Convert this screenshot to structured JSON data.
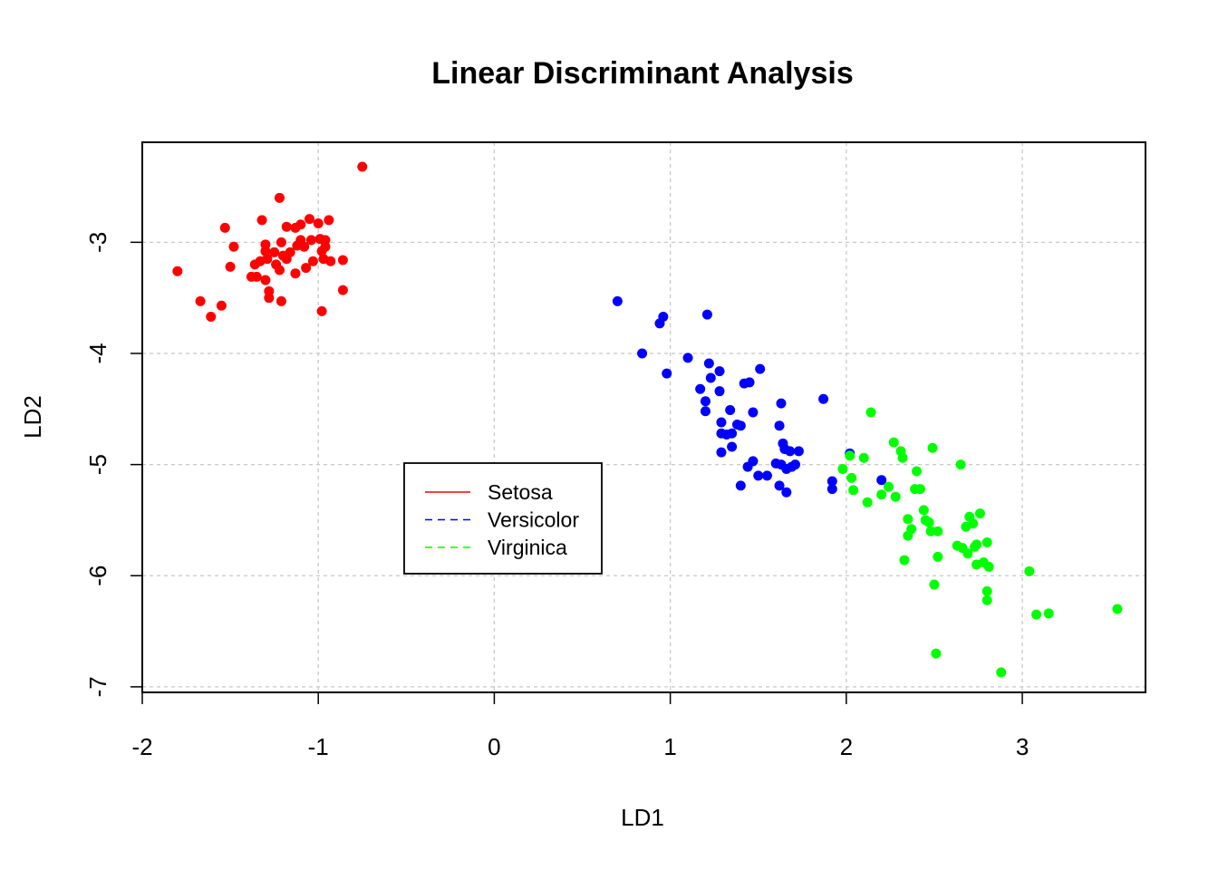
{
  "chart_data": {
    "type": "scatter",
    "title": "Linear Discriminant Analysis",
    "xlabel": "LD1",
    "ylabel": "LD2",
    "xlim": [
      -2.0,
      3.7
    ],
    "ylim": [
      -7.05,
      -2.1
    ],
    "xticks": [
      -2,
      -1,
      0,
      1,
      2,
      3
    ],
    "yticks": [
      -3,
      -4,
      -5,
      -6,
      -7
    ],
    "grid": true,
    "legend": {
      "placement": "center",
      "entries": [
        {
          "name": "Setosa",
          "color": "#ff0000",
          "dash": "solid"
        },
        {
          "name": "Versicolor",
          "color": "#0000ff",
          "dash": "dashed"
        },
        {
          "name": "Virginica",
          "color": "#00ff00",
          "dash": "dashed"
        }
      ]
    },
    "series": [
      {
        "name": "Setosa",
        "color": "#ff0000",
        "points": [
          [
            -0.75,
            -2.32
          ],
          [
            -1.8,
            -3.26
          ],
          [
            -1.67,
            -3.53
          ],
          [
            -1.61,
            -3.67
          ],
          [
            -1.55,
            -3.57
          ],
          [
            -1.53,
            -2.87
          ],
          [
            -1.48,
            -3.04
          ],
          [
            -1.5,
            -3.22
          ],
          [
            -1.38,
            -3.31
          ],
          [
            -1.35,
            -3.31
          ],
          [
            -1.36,
            -3.2
          ],
          [
            -1.33,
            -3.17
          ],
          [
            -1.32,
            -2.8
          ],
          [
            -1.3,
            -3.02
          ],
          [
            -1.3,
            -3.08
          ],
          [
            -1.29,
            -3.15
          ],
          [
            -1.3,
            -3.34
          ],
          [
            -1.28,
            -3.44
          ],
          [
            -1.28,
            -3.5
          ],
          [
            -1.25,
            -3.09
          ],
          [
            -1.24,
            -3.2
          ],
          [
            -1.22,
            -2.6
          ],
          [
            -1.21,
            -3.0
          ],
          [
            -1.2,
            -3.12
          ],
          [
            -1.22,
            -3.25
          ],
          [
            -1.21,
            -3.53
          ],
          [
            -1.18,
            -2.86
          ],
          [
            -1.18,
            -3.15
          ],
          [
            -1.16,
            -3.09
          ],
          [
            -1.13,
            -2.87
          ],
          [
            -1.12,
            -3.03
          ],
          [
            -1.13,
            -3.28
          ],
          [
            -1.1,
            -2.84
          ],
          [
            -1.1,
            -2.98
          ],
          [
            -1.08,
            -3.04
          ],
          [
            -1.07,
            -3.23
          ],
          [
            -1.05,
            -2.79
          ],
          [
            -1.04,
            -2.98
          ],
          [
            -1.03,
            -3.17
          ],
          [
            -1.0,
            -2.83
          ],
          [
            -0.99,
            -2.97
          ],
          [
            -0.98,
            -3.08
          ],
          [
            -0.97,
            -3.15
          ],
          [
            -0.96,
            -3.04
          ],
          [
            -0.96,
            -2.98
          ],
          [
            -0.98,
            -3.62
          ],
          [
            -0.94,
            -2.8
          ],
          [
            -0.93,
            -3.17
          ],
          [
            -0.86,
            -3.16
          ],
          [
            -0.86,
            -3.43
          ]
        ]
      },
      {
        "name": "Versicolor",
        "color": "#0000ff",
        "points": [
          [
            0.7,
            -3.53
          ],
          [
            0.84,
            -4.0
          ],
          [
            0.94,
            -3.73
          ],
          [
            0.96,
            -3.67
          ],
          [
            0.98,
            -4.18
          ],
          [
            1.1,
            -4.04
          ],
          [
            1.17,
            -4.32
          ],
          [
            1.2,
            -4.43
          ],
          [
            1.2,
            -4.52
          ],
          [
            1.21,
            -3.65
          ],
          [
            1.22,
            -4.09
          ],
          [
            1.23,
            -4.22
          ],
          [
            1.28,
            -4.16
          ],
          [
            1.28,
            -4.34
          ],
          [
            1.29,
            -4.62
          ],
          [
            1.29,
            -4.72
          ],
          [
            1.29,
            -4.89
          ],
          [
            1.32,
            -4.73
          ],
          [
            1.34,
            -4.51
          ],
          [
            1.35,
            -4.72
          ],
          [
            1.35,
            -4.84
          ],
          [
            1.38,
            -4.64
          ],
          [
            1.4,
            -4.65
          ],
          [
            1.4,
            -5.19
          ],
          [
            1.42,
            -4.27
          ],
          [
            1.45,
            -4.26
          ],
          [
            1.44,
            -5.02
          ],
          [
            1.47,
            -4.53
          ],
          [
            1.47,
            -4.97
          ],
          [
            1.5,
            -5.1
          ],
          [
            1.51,
            -4.14
          ],
          [
            1.55,
            -5.1
          ],
          [
            1.6,
            -4.99
          ],
          [
            1.62,
            -4.65
          ],
          [
            1.63,
            -4.45
          ],
          [
            1.63,
            -5.0
          ],
          [
            1.62,
            -5.19
          ],
          [
            1.64,
            -4.81
          ],
          [
            1.65,
            -4.86
          ],
          [
            1.66,
            -5.04
          ],
          [
            1.66,
            -5.25
          ],
          [
            1.68,
            -4.88
          ],
          [
            1.69,
            -5.02
          ],
          [
            1.71,
            -5.0
          ],
          [
            1.73,
            -4.88
          ],
          [
            1.87,
            -4.41
          ],
          [
            1.92,
            -5.15
          ],
          [
            1.92,
            -5.22
          ],
          [
            2.02,
            -4.9
          ],
          [
            2.2,
            -5.14
          ]
        ]
      },
      {
        "name": "Virginica",
        "color": "#00ff00",
        "points": [
          [
            1.98,
            -5.04
          ],
          [
            2.02,
            -4.92
          ],
          [
            2.03,
            -5.12
          ],
          [
            2.04,
            -5.23
          ],
          [
            2.1,
            -4.94
          ],
          [
            2.12,
            -5.34
          ],
          [
            2.14,
            -4.53
          ],
          [
            2.2,
            -5.27
          ],
          [
            2.24,
            -5.2
          ],
          [
            2.27,
            -4.8
          ],
          [
            2.28,
            -5.29
          ],
          [
            2.31,
            -4.88
          ],
          [
            2.32,
            -4.94
          ],
          [
            2.33,
            -5.86
          ],
          [
            2.35,
            -5.49
          ],
          [
            2.35,
            -5.64
          ],
          [
            2.37,
            -5.58
          ],
          [
            2.39,
            -5.22
          ],
          [
            2.4,
            -5.06
          ],
          [
            2.42,
            -5.22
          ],
          [
            2.44,
            -5.41
          ],
          [
            2.45,
            -5.5
          ],
          [
            2.47,
            -5.52
          ],
          [
            2.48,
            -5.6
          ],
          [
            2.49,
            -4.85
          ],
          [
            2.5,
            -6.08
          ],
          [
            2.51,
            -6.7
          ],
          [
            2.52,
            -5.6
          ],
          [
            2.52,
            -5.83
          ],
          [
            2.63,
            -5.73
          ],
          [
            2.65,
            -5.0
          ],
          [
            2.66,
            -5.75
          ],
          [
            2.68,
            -5.56
          ],
          [
            2.69,
            -5.8
          ],
          [
            2.7,
            -5.47
          ],
          [
            2.72,
            -5.53
          ],
          [
            2.73,
            -5.74
          ],
          [
            2.74,
            -5.9
          ],
          [
            2.76,
            -5.44
          ],
          [
            2.78,
            -5.88
          ],
          [
            2.8,
            -5.7
          ],
          [
            2.8,
            -6.14
          ],
          [
            2.8,
            -6.22
          ],
          [
            2.81,
            -5.92
          ],
          [
            2.88,
            -6.87
          ],
          [
            3.04,
            -5.96
          ],
          [
            3.08,
            -6.35
          ],
          [
            3.15,
            -6.34
          ],
          [
            3.54,
            -6.3
          ],
          [
            2.74,
            -5.72
          ]
        ]
      }
    ]
  }
}
